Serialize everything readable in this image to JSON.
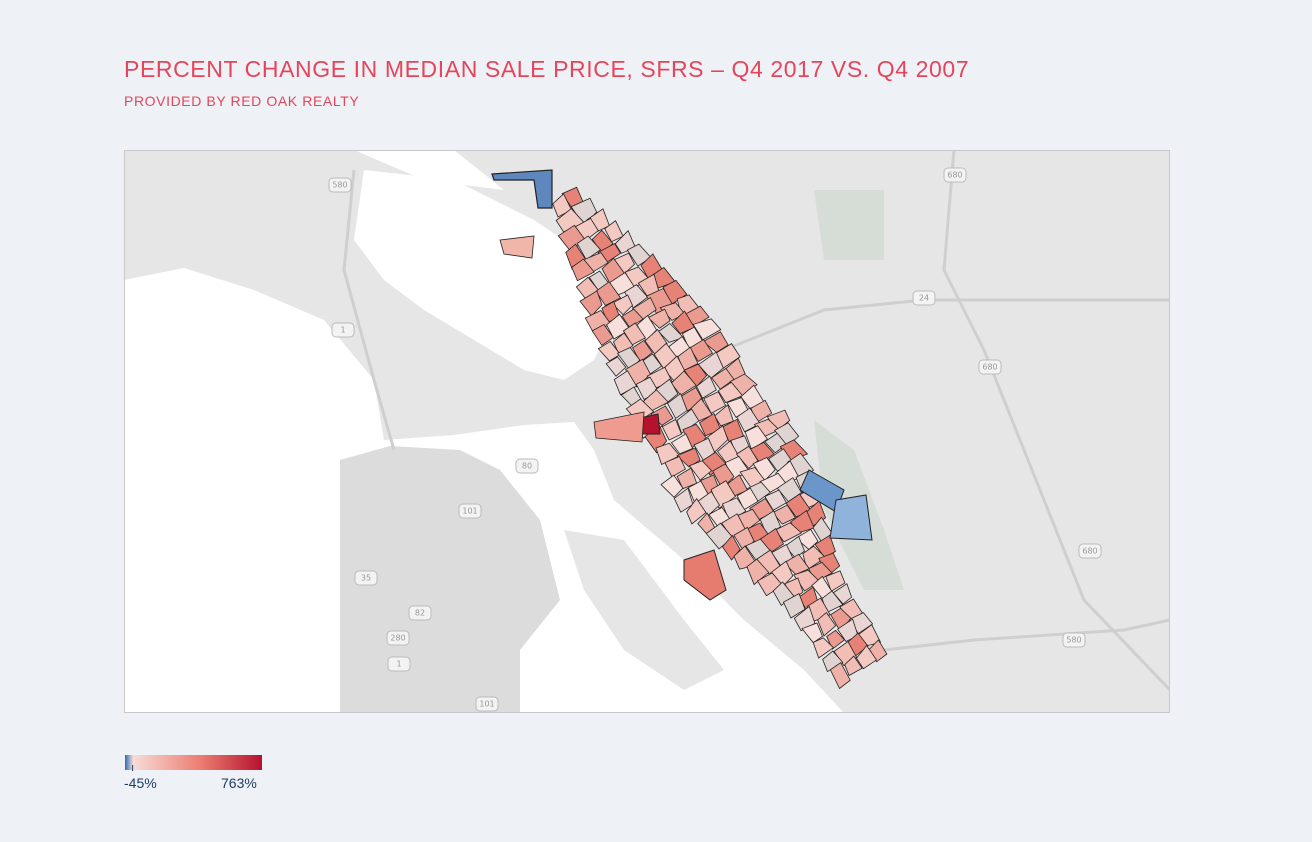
{
  "header": {
    "title": "PERCENT CHANGE IN MEDIAN SALE PRICE, SFRS – Q4 2017 VS. Q4 2007",
    "subtitle": "PROVIDED BY RED OAK REALTY"
  },
  "map": {
    "highways": [
      "580",
      "680",
      "24",
      "680",
      "80",
      "101",
      "680",
      "35",
      "82",
      "280",
      "1",
      "1",
      "580",
      "101"
    ]
  },
  "legend": {
    "range": [
      {
        "value": -45,
        "label": "-45%"
      },
      {
        "value": 763,
        "label": "763%"
      }
    ]
  }
}
